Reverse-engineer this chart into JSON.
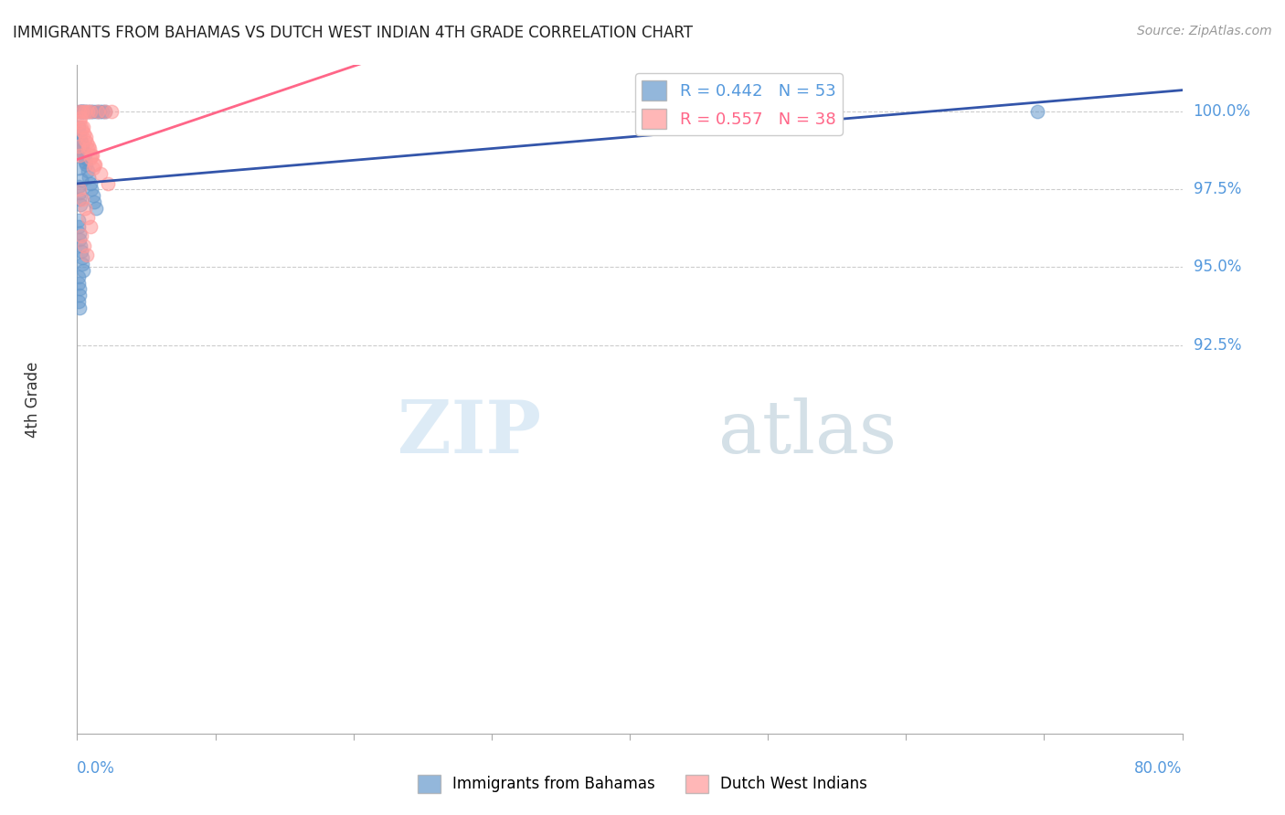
{
  "title": "IMMIGRANTS FROM BAHAMAS VS DUTCH WEST INDIAN 4TH GRADE CORRELATION CHART",
  "source": "Source: ZipAtlas.com",
  "ylabel": "4th Grade",
  "ylabel_right_ticks": [
    100.0,
    97.5,
    95.0,
    92.5
  ],
  "xmin": 0.0,
  "xmax": 80.0,
  "ymin": 80.0,
  "ymax": 101.5,
  "blue_color": "#6699CC",
  "pink_color": "#FF9999",
  "blue_line_color": "#3355AA",
  "pink_line_color": "#FF6688",
  "blue_R": 0.442,
  "blue_N": 53,
  "pink_R": 0.557,
  "pink_N": 38,
  "watermark_zip": "ZIP",
  "watermark_atlas": "atlas",
  "blue_x": [
    0.2,
    0.3,
    0.4,
    0.5,
    0.6,
    0.8,
    1.0,
    1.2,
    1.4,
    1.6,
    1.8,
    2.0,
    0.1,
    0.15,
    0.25,
    0.35,
    0.45,
    0.55,
    0.65,
    0.75,
    0.85,
    0.95,
    1.05,
    1.15,
    1.25,
    1.35,
    0.3,
    0.4,
    0.5,
    0.6,
    0.2,
    0.3,
    0.1,
    0.15,
    0.2,
    0.25,
    0.1,
    0.12,
    0.15,
    0.18,
    0.22,
    0.28,
    0.35,
    0.4,
    0.45,
    0.1,
    0.12,
    0.15,
    0.2,
    0.1,
    0.15,
    69.5,
    0.3
  ],
  "blue_y": [
    100.0,
    100.0,
    100.0,
    100.0,
    100.0,
    100.0,
    100.0,
    100.0,
    100.0,
    100.0,
    100.0,
    100.0,
    99.5,
    99.3,
    99.1,
    98.9,
    98.7,
    98.5,
    98.3,
    98.1,
    97.9,
    97.7,
    97.5,
    97.3,
    97.1,
    96.9,
    99.0,
    98.8,
    98.6,
    98.4,
    98.2,
    97.8,
    97.6,
    97.4,
    97.2,
    97.0,
    96.5,
    96.3,
    96.1,
    95.9,
    95.7,
    95.5,
    95.3,
    95.1,
    94.9,
    94.7,
    94.5,
    94.3,
    94.1,
    93.9,
    93.7,
    100.0,
    100.0
  ],
  "pink_x": [
    0.2,
    0.4,
    0.6,
    0.8,
    1.0,
    1.5,
    2.0,
    2.5,
    0.3,
    0.5,
    0.7,
    0.9,
    1.1,
    1.3,
    1.7,
    2.2,
    0.25,
    0.45,
    0.65,
    0.85,
    1.05,
    1.25,
    0.15,
    0.35,
    0.55,
    0.75,
    0.95,
    1.15,
    0.2,
    0.4,
    0.6,
    0.8,
    1.0,
    0.3,
    0.5,
    0.7,
    0.1,
    0.15
  ],
  "pink_y": [
    100.0,
    100.0,
    100.0,
    100.0,
    100.0,
    100.0,
    100.0,
    100.0,
    99.5,
    99.3,
    99.0,
    98.8,
    98.6,
    98.3,
    98.0,
    97.7,
    99.8,
    99.5,
    99.2,
    98.9,
    98.6,
    98.3,
    99.7,
    99.4,
    99.1,
    98.8,
    98.5,
    98.2,
    97.5,
    97.2,
    96.9,
    96.6,
    96.3,
    96.0,
    95.7,
    95.4,
    98.9,
    98.6
  ]
}
